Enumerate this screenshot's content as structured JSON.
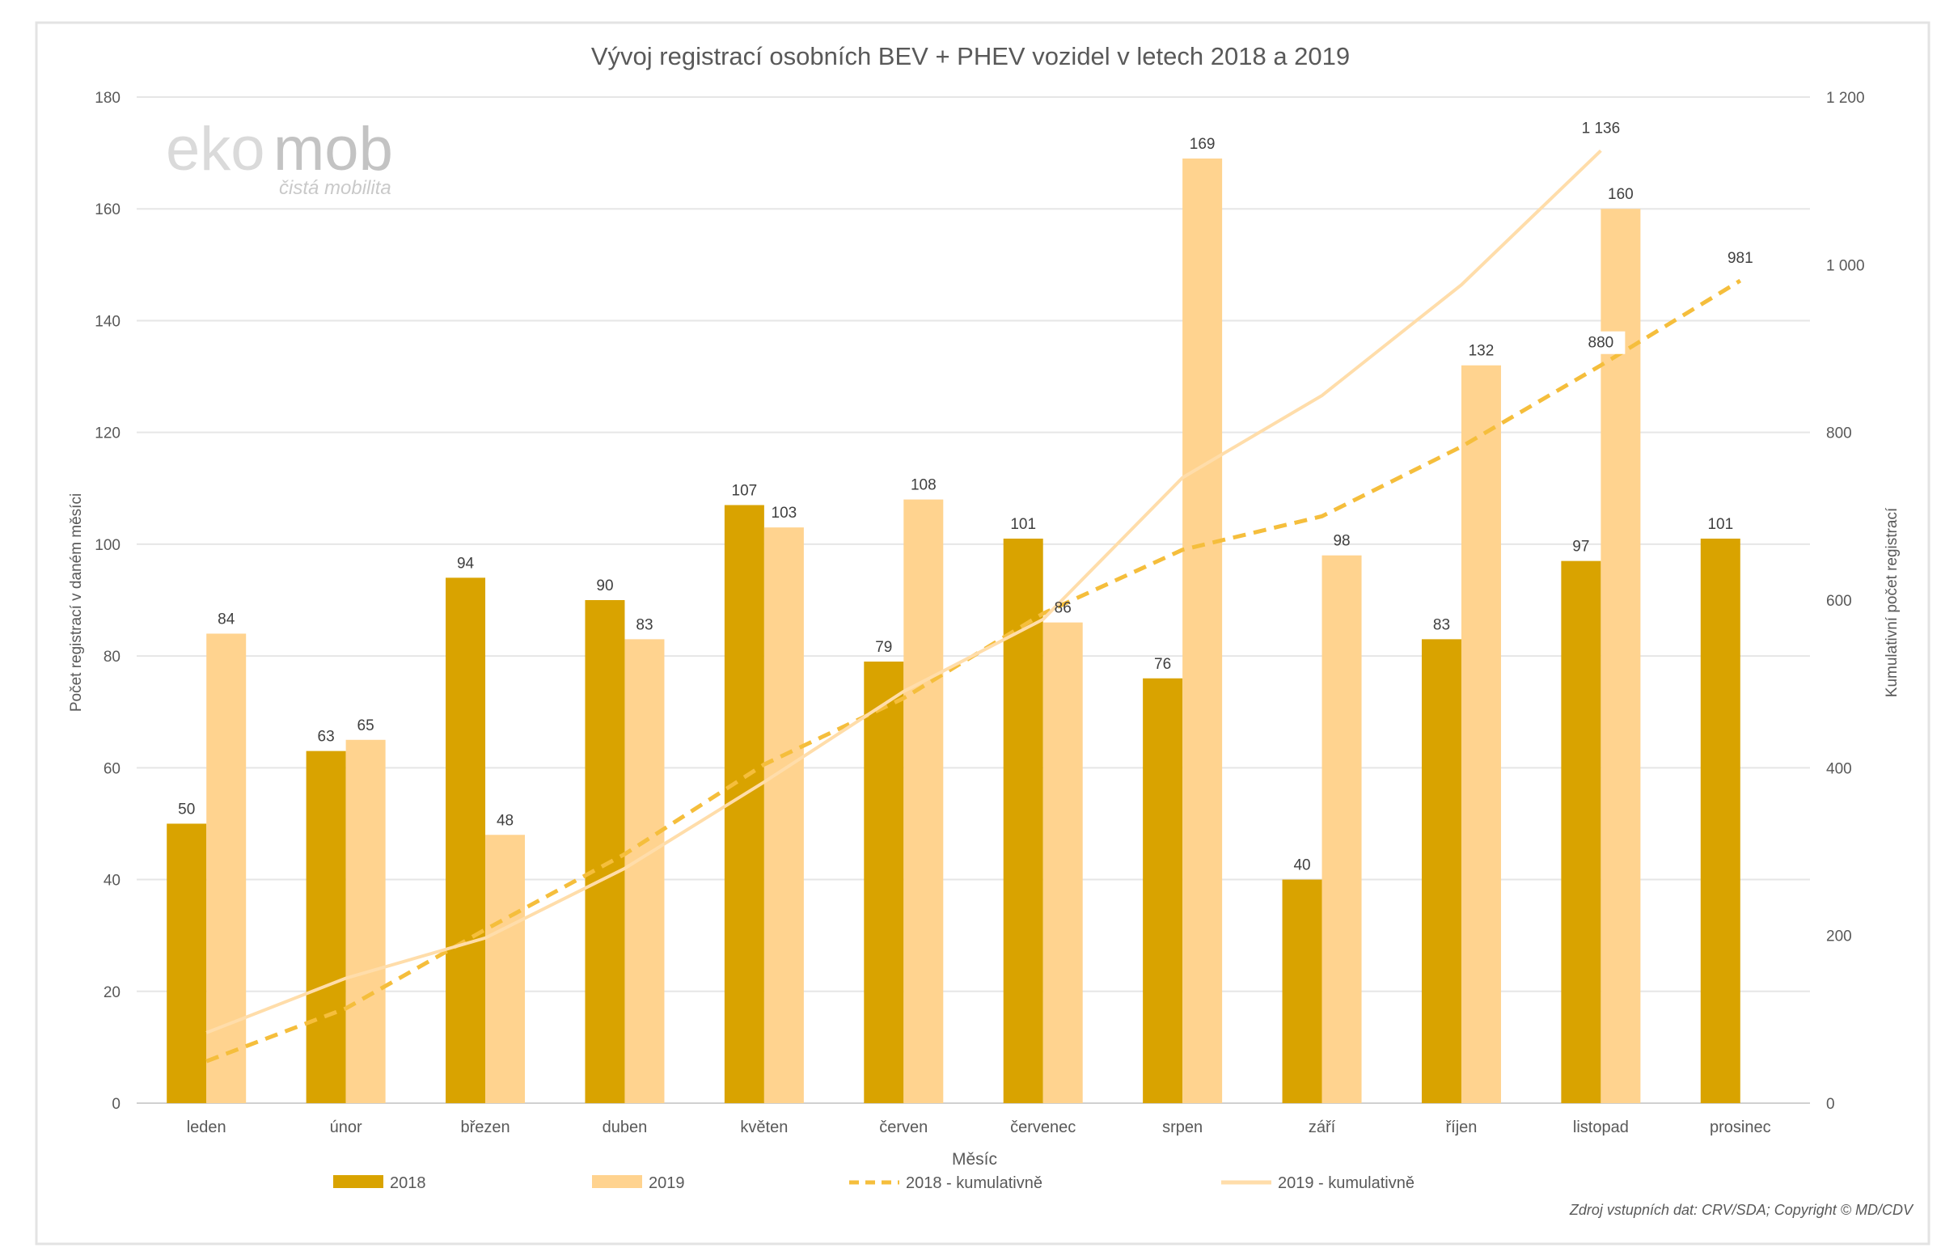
{
  "chart_data": {
    "type": "bar",
    "title": "Vývoj registrací osobních BEV + PHEV vozidel v letech 2018 a 2019",
    "xlabel": "Měsíc",
    "ylabel": "Počet registrací v daném měsíci",
    "y2label": "Kumulativní počet registrací",
    "ylim": [
      0,
      180
    ],
    "y2lim": [
      0,
      1200
    ],
    "yticks": [
      "0",
      "20",
      "40",
      "60",
      "80",
      "100",
      "120",
      "140",
      "160",
      "180"
    ],
    "y2ticks": [
      "0",
      "200",
      "400",
      "600",
      "800",
      "1 000",
      "1 200"
    ],
    "grid": true,
    "legend_position": "bottom",
    "categories": [
      "leden",
      "únor",
      "březen",
      "duben",
      "květen",
      "červen",
      "červenec",
      "srpen",
      "září",
      "říjen",
      "listopad",
      "prosinec"
    ],
    "series": [
      {
        "name": "2018",
        "kind": "bar",
        "axis": "left",
        "color": "#D9A300",
        "values": [
          50,
          63,
          94,
          90,
          107,
          79,
          101,
          76,
          40,
          83,
          97,
          101
        ]
      },
      {
        "name": "2019",
        "kind": "bar",
        "axis": "left",
        "color": "#FFD38F",
        "values": [
          84,
          65,
          48,
          83,
          103,
          108,
          86,
          169,
          98,
          132,
          160,
          null
        ]
      },
      {
        "name": "2018 - kumulativně",
        "kind": "line",
        "style": "dashed",
        "axis": "right",
        "color": "#F5BE3C",
        "values": [
          50,
          113,
          207,
          297,
          404,
          483,
          584,
          660,
          700,
          783,
          880,
          981
        ]
      },
      {
        "name": "2019 - kumulativně",
        "kind": "line",
        "style": "solid",
        "axis": "right",
        "color": "#FFDDAA",
        "values": [
          84,
          149,
          197,
          280,
          383,
          491,
          577,
          746,
          844,
          976,
          1136,
          null
        ]
      }
    ],
    "line_labels": [
      {
        "series": "2018 - kumulativně",
        "category": "listopad",
        "text": "880"
      },
      {
        "series": "2018 - kumulativně",
        "category": "prosinec",
        "text": "981"
      },
      {
        "series": "2019 - kumulativně",
        "category": "listopad",
        "text": "1 136"
      }
    ]
  },
  "logo": {
    "name": "ekomob",
    "tagline": "čistá mobilita"
  },
  "source_note": "Zdroj vstupních dat: CRV/SDA; Copyright © MD/CDV"
}
